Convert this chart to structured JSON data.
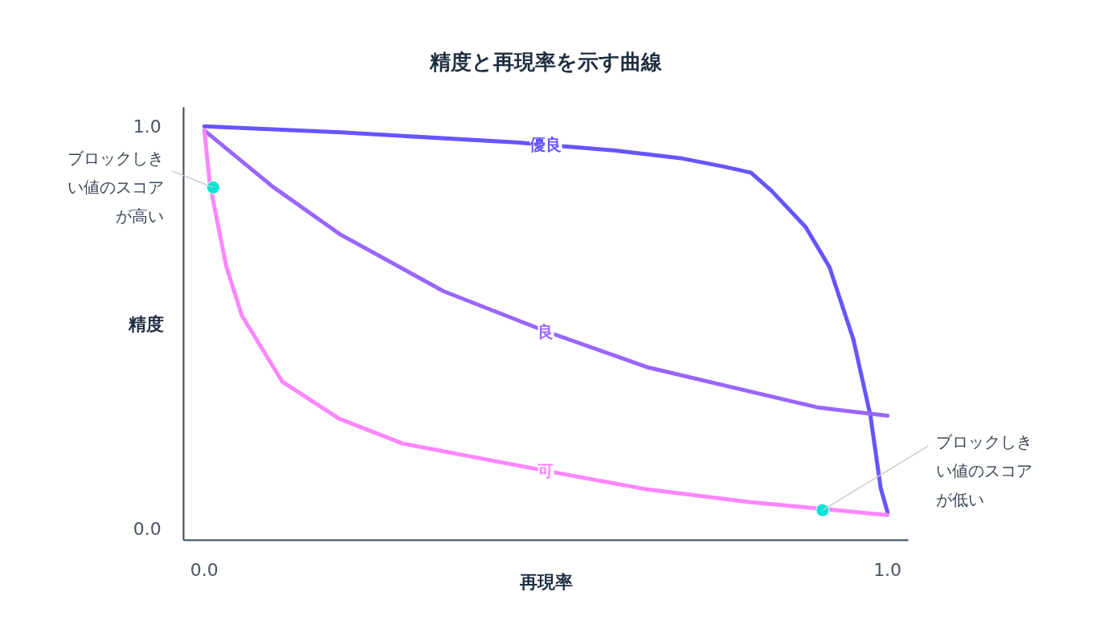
{
  "chart_data": {
    "type": "line",
    "title": "精度と再現率を示す曲線",
    "xlabel": "再現率",
    "ylabel": "精度",
    "xlim": [
      -0.03,
      1.03
    ],
    "ylim": [
      -0.03,
      1.047
    ],
    "xticks": [
      {
        "value": 0,
        "label": "0.0"
      },
      {
        "value": 1,
        "label": "1.0"
      }
    ],
    "yticks": [
      {
        "value": 0,
        "label": "0.0"
      },
      {
        "value": 1,
        "label": "1.0"
      }
    ],
    "grid": false,
    "marker": "none",
    "line_style": "solid",
    "series": [
      {
        "name": "優良",
        "color": "#6655ff",
        "x": [
          0,
          0.2,
          0.456,
          0.6,
          0.7,
          0.76,
          0.8,
          0.83,
          0.88,
          0.915,
          0.95,
          0.975,
          0.99,
          1.0
        ],
        "values": [
          1.0,
          0.985,
          0.96,
          0.94,
          0.92,
          0.9,
          0.885,
          0.84,
          0.75,
          0.65,
          0.47,
          0.28,
          0.1,
          0.04
        ]
      },
      {
        "name": "良",
        "color": "#9966ff",
        "x": [
          0,
          0.1,
          0.2,
          0.35,
          0.5,
          0.65,
          0.8,
          0.9,
          1.0
        ],
        "values": [
          0.99,
          0.85,
          0.73,
          0.59,
          0.49,
          0.4,
          0.34,
          0.3,
          0.28
        ]
      },
      {
        "name": "可",
        "color": "#ff85ff",
        "x": [
          0,
          0.008,
          0.032,
          0.055,
          0.114,
          0.197,
          0.29,
          0.5,
          0.644,
          0.8,
          1.0
        ],
        "values": [
          0.99,
          0.857,
          0.652,
          0.529,
          0.365,
          0.273,
          0.211,
          0.143,
          0.098,
          0.065,
          0.033
        ]
      },
      {
        "type": "scatter",
        "marker": "circle",
        "color": "#00e5d4",
        "x": [
          0.013,
          0.905
        ],
        "values": [
          0.848,
          0.045
        ]
      }
    ],
    "annotations": [
      {
        "text": "ブロックしきい値のスコアが高い",
        "x": 0.013,
        "y": 0.848
      },
      {
        "text": "ブロックしきい値のスコアが低い",
        "x": 0.905,
        "y": 0.045
      }
    ]
  }
}
